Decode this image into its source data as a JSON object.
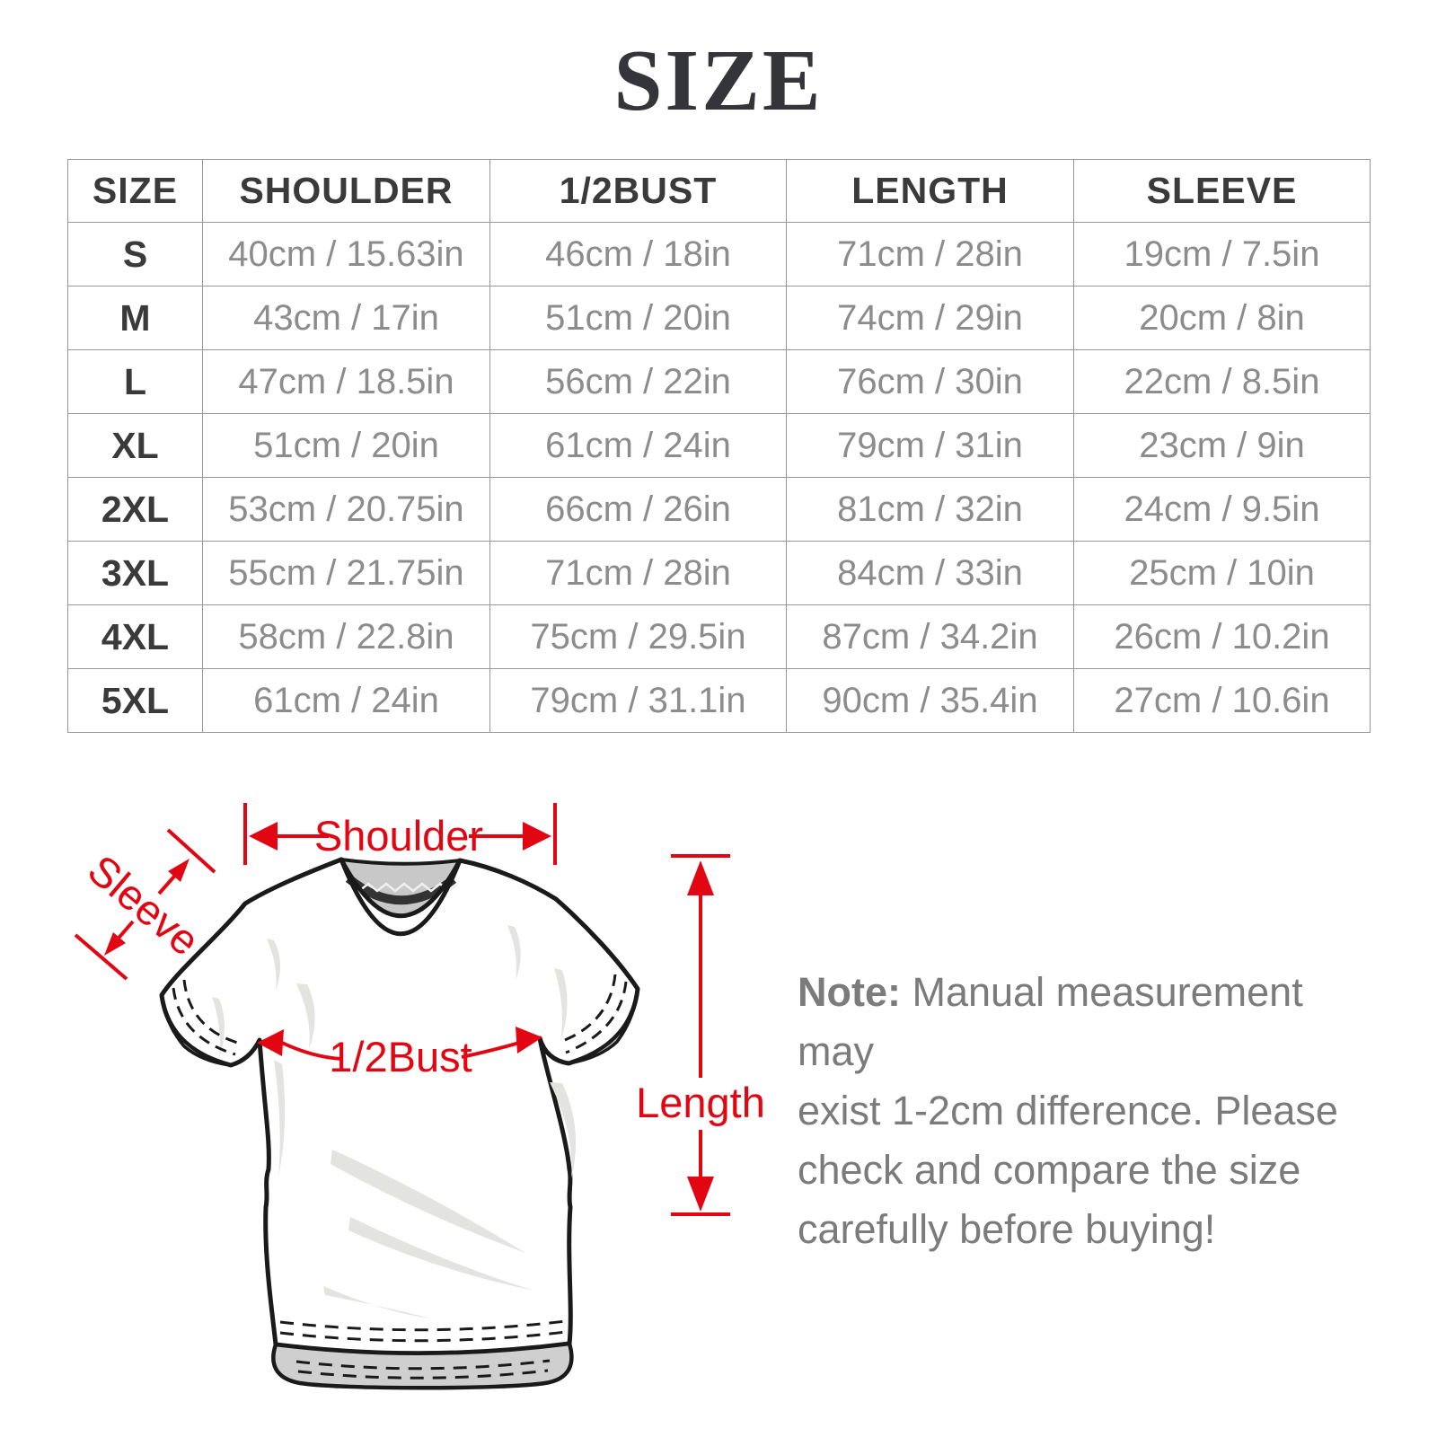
{
  "title": "SIZE",
  "colors": {
    "accent_red": "#e20613",
    "heading_dark": "#34343b",
    "table_text_dark": "#3a3a3a",
    "table_text_gray": "#8c8c8c",
    "note_gray": "#7b7b7b",
    "border_gray": "#979797"
  },
  "table": {
    "columns": [
      "SIZE",
      "SHOULDER",
      "1/2BUST",
      "LENGTH",
      "SLEEVE"
    ],
    "keys": [
      "size",
      "shoulder",
      "half_bust",
      "length",
      "sleeve"
    ],
    "rows": [
      [
        "S",
        "40cm / 15.63in",
        "46cm / 18in",
        "71cm / 28in",
        "19cm / 7.5in"
      ],
      [
        "M",
        "43cm / 17in",
        "51cm / 20in",
        "74cm / 29in",
        "20cm / 8in"
      ],
      [
        "L",
        "47cm / 18.5in",
        "56cm / 22in",
        "76cm / 30in",
        "22cm / 8.5in"
      ],
      [
        "XL",
        "51cm / 20in",
        "61cm / 24in",
        "79cm / 31in",
        "23cm / 9in"
      ],
      [
        "2XL",
        "53cm / 20.75in",
        "66cm / 26in",
        "81cm / 32in",
        "24cm / 9.5in"
      ],
      [
        "3XL",
        "55cm / 21.75in",
        "71cm / 28in",
        "84cm / 33in",
        "25cm / 10in"
      ],
      [
        "4XL",
        "58cm / 22.8in",
        "75cm / 29.5in",
        "87cm / 34.2in",
        "26cm / 10.2in"
      ],
      [
        "5XL",
        "61cm / 24in",
        "79cm / 31.1in",
        "90cm / 35.4in",
        "27cm / 10.6in"
      ]
    ]
  },
  "diagram": {
    "labels": {
      "shoulder": "Shoulder",
      "sleeve": "Sleeve",
      "half_bust": "1/2Bust",
      "length": "Length"
    }
  },
  "note": {
    "label": "Note:",
    "line1": " Manual measurement may",
    "line2": "exist 1-2cm difference. Please",
    "line3": "check and compare the size",
    "line4": "carefully before buying!"
  }
}
